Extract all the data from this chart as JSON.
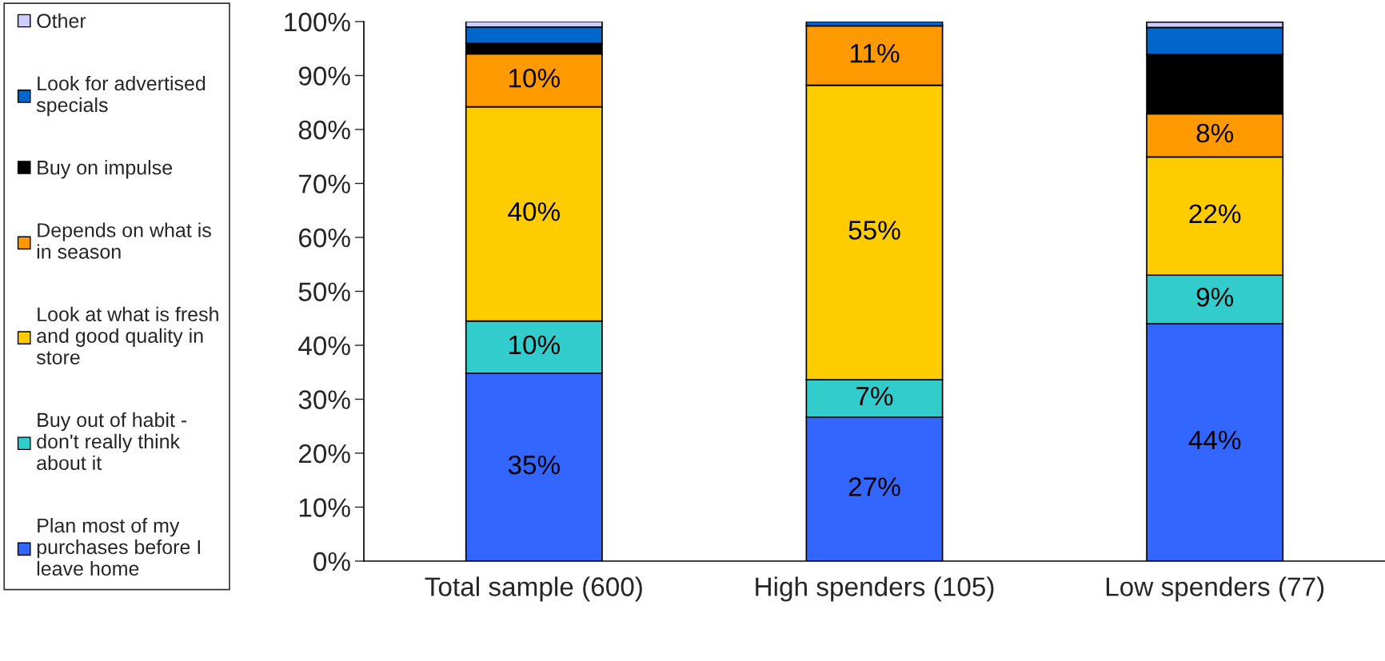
{
  "chart_data": {
    "type": "bar",
    "stacked": true,
    "categories": [
      "Total sample (600)",
      "High spenders (105)",
      "Low spenders (77)"
    ],
    "series": [
      {
        "name": "Plan most of my\npurchases before I\nleave home",
        "color": "#3366ff",
        "values": [
          34.8,
          26.7,
          44
        ],
        "value_labels": [
          "35%",
          "27%",
          "44%"
        ]
      },
      {
        "name": "Buy out of habit -\ndon't really think\nabout it",
        "color": "#33cccc",
        "values": [
          9.7,
          6.9,
          9
        ],
        "value_labels": [
          "10%",
          "7%",
          "9%"
        ]
      },
      {
        "name": "Look at what is fresh\nand good quality in\nstore",
        "color": "#ffcc00",
        "values": [
          39.7,
          54.6,
          21.9
        ],
        "value_labels": [
          "40%",
          "55%",
          "22%"
        ]
      },
      {
        "name": "Depends on what is\nin season",
        "color": "#ff9900",
        "values": [
          9.8,
          11,
          8
        ],
        "value_labels": [
          "10%",
          "11%",
          "8%"
        ]
      },
      {
        "name": "Buy on impulse",
        "color": "#000000",
        "values": [
          2,
          0,
          11
        ]
      },
      {
        "name": "Look for advertised\nspecials",
        "color": "#0066cc",
        "values": [
          3,
          0.8,
          5
        ]
      },
      {
        "name": "Other",
        "color": "#ccccff",
        "values": [
          1,
          0,
          1
        ]
      }
    ],
    "ylim": [
      0,
      100
    ],
    "yticks": [
      {
        "value": 0,
        "label": "0%"
      },
      {
        "value": 10,
        "label": "10%"
      },
      {
        "value": 20,
        "label": "20%"
      },
      {
        "value": 30,
        "label": "30%"
      },
      {
        "value": 40,
        "label": "40%"
      },
      {
        "value": 50,
        "label": "50%"
      },
      {
        "value": 60,
        "label": "60%"
      },
      {
        "value": 70,
        "label": "70%"
      },
      {
        "value": 80,
        "label": "80%"
      },
      {
        "value": 90,
        "label": "90%"
      },
      {
        "value": 100,
        "label": "100%"
      }
    ],
    "legend": "left",
    "marker": "square",
    "grid": false
  }
}
